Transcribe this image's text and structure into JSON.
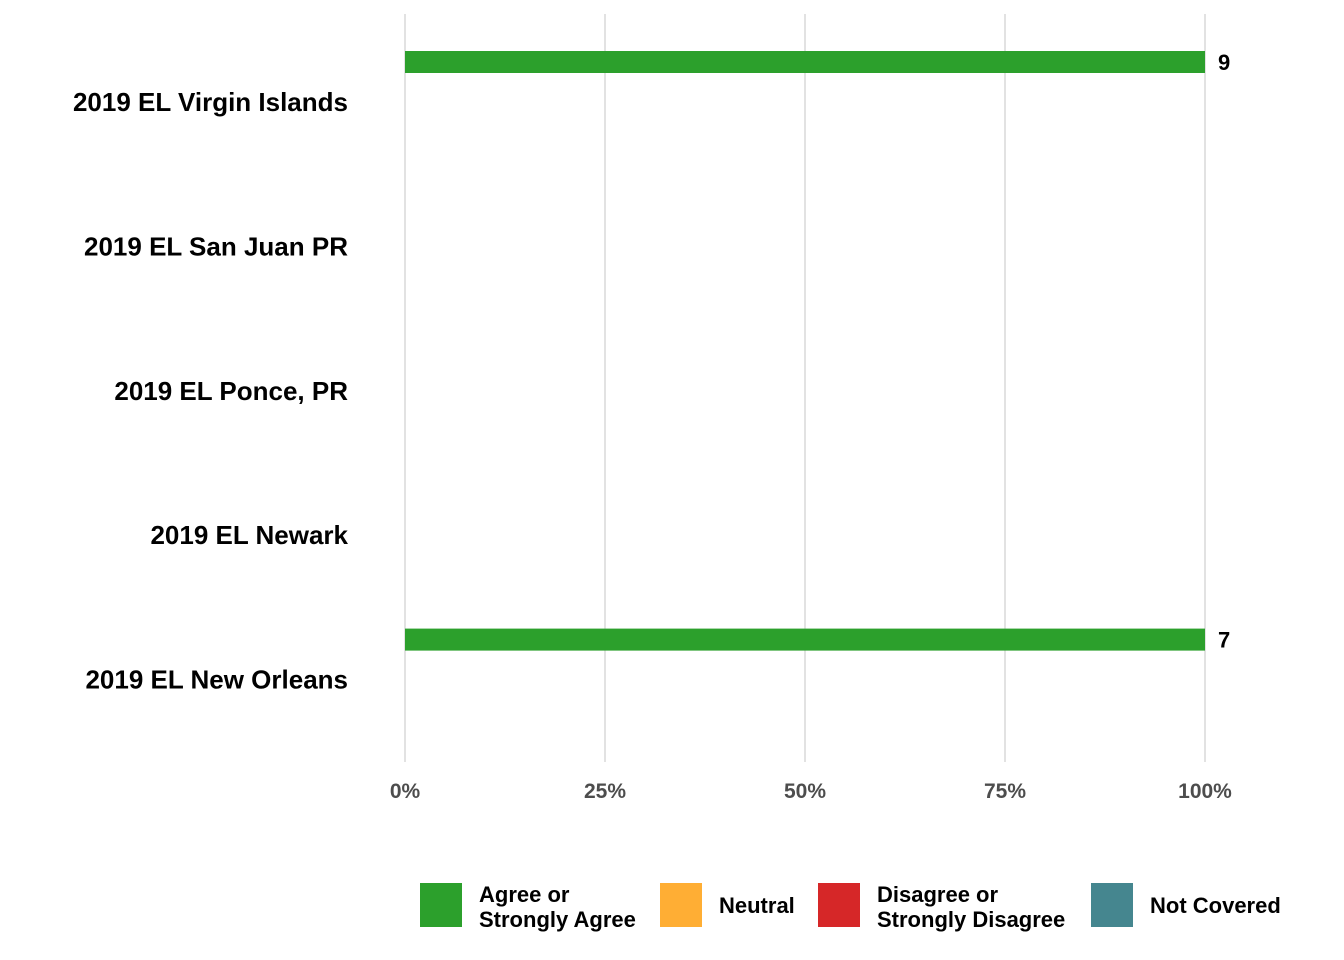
{
  "chart_data": {
    "type": "bar",
    "orientation": "horizontal",
    "stacked": true,
    "categories": [
      "2019 EL Virgin Islands",
      "2019 EL San Juan PR",
      "2019 EL Ponce, PR",
      "2019 EL Newark",
      "2019 EL New Orleans"
    ],
    "series": [
      {
        "name": "Agree or Strongly Agree",
        "color": "#2ca02c",
        "values": [
          100,
          0,
          0,
          0,
          100
        ]
      },
      {
        "name": "Neutral",
        "color": "#ffae34",
        "values": [
          0,
          0,
          0,
          0,
          0
        ]
      },
      {
        "name": "Disagree or Strongly Disagree",
        "color": "#d62728",
        "values": [
          0,
          0,
          0,
          0,
          0
        ]
      },
      {
        "name": "Not Covered",
        "color": "#45868f",
        "values": [
          0,
          0,
          0,
          0,
          0
        ]
      }
    ],
    "data_labels": [
      "9",
      "",
      "",
      "",
      "7"
    ],
    "x_ticks": [
      {
        "value": 0,
        "label": "0%"
      },
      {
        "value": 25,
        "label": "25%"
      },
      {
        "value": 50,
        "label": "50%"
      },
      {
        "value": 75,
        "label": "75%"
      },
      {
        "value": 100,
        "label": "100%"
      }
    ],
    "xlim": [
      0,
      100
    ],
    "grid": "vertical",
    "legend_position": "bottom-right",
    "legend_entries": [
      {
        "lines": [
          "Agree or",
          "Strongly Agree"
        ],
        "color": "#2ca02c"
      },
      {
        "lines": [
          "Neutral"
        ],
        "color": "#ffae34"
      },
      {
        "lines": [
          "Disagree or",
          "Strongly Disagree"
        ],
        "color": "#d62728"
      },
      {
        "lines": [
          "Not Covered"
        ],
        "color": "#45868f"
      }
    ]
  }
}
